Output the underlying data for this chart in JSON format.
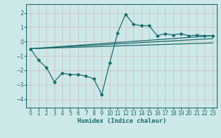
{
  "xlabel": "Humidex (Indice chaleur)",
  "background_color": "#cce8e8",
  "grid_color": "#b0d0d0",
  "line_color": "#1a6b6b",
  "xlim": [
    -0.5,
    23.5
  ],
  "ylim": [
    -4.6,
    2.6
  ],
  "yticks": [
    -4,
    -3,
    -2,
    -1,
    0,
    1,
    2
  ],
  "xticks": [
    0,
    1,
    2,
    3,
    4,
    5,
    6,
    7,
    8,
    9,
    10,
    11,
    12,
    13,
    14,
    15,
    16,
    17,
    18,
    19,
    20,
    21,
    22,
    23
  ],
  "series": [
    [
      0,
      -0.5
    ],
    [
      1,
      -1.3
    ],
    [
      2,
      -1.8
    ],
    [
      3,
      -2.8
    ],
    [
      4,
      -2.2
    ],
    [
      5,
      -2.3
    ],
    [
      6,
      -2.3
    ],
    [
      7,
      -2.4
    ],
    [
      8,
      -2.6
    ],
    [
      9,
      -3.7
    ],
    [
      10,
      -1.5
    ],
    [
      11,
      0.6
    ],
    [
      12,
      1.9
    ],
    [
      13,
      1.2
    ],
    [
      14,
      1.1
    ],
    [
      15,
      1.1
    ],
    [
      16,
      0.4
    ],
    [
      17,
      0.55
    ],
    [
      18,
      0.45
    ],
    [
      19,
      0.55
    ],
    [
      20,
      0.4
    ],
    [
      21,
      0.45
    ],
    [
      22,
      0.4
    ],
    [
      23,
      0.4
    ]
  ],
  "line2_pts": [
    [
      0,
      -0.5
    ],
    [
      23,
      0.4
    ]
  ],
  "line3_pts": [
    [
      0,
      -0.5
    ],
    [
      23,
      -0.1
    ]
  ],
  "line4_pts": [
    [
      0,
      -0.5
    ],
    [
      23,
      0.2
    ]
  ]
}
